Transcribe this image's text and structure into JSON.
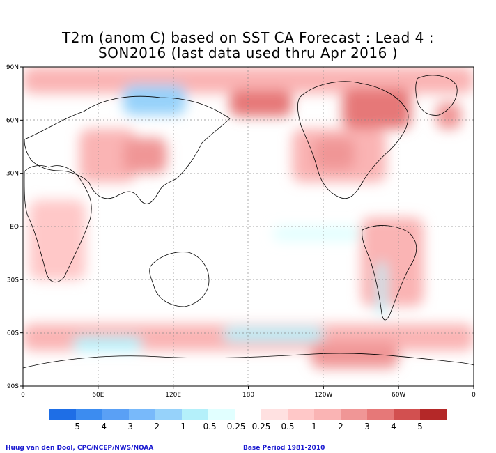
{
  "title_line1": "T2m (anom C) based on SST CA Forecast : Lead 4 :",
  "title_line2": "SON2016 (last data used thru Apr 2016 )",
  "lat_labels": [
    "90N",
    "60N",
    "30N",
    "EQ",
    "30S",
    "60S",
    "90S"
  ],
  "lon_labels": [
    "0",
    "60E",
    "120E",
    "180",
    "120W",
    "60W",
    "0"
  ],
  "colorbar": {
    "colors": [
      "#1e6ee6",
      "#3c8cf0",
      "#5aa0f5",
      "#78b9fa",
      "#96d2fa",
      "#b4f0fa",
      "#e1ffff",
      "#ffffff",
      "#ffe1e1",
      "#ffc8c8",
      "#fab4b4",
      "#f09696",
      "#e67878",
      "#d25050",
      "#b42828"
    ],
    "labels": [
      "-5",
      "-4",
      "-3",
      "-2",
      "-1",
      "-0.5",
      "-0.25",
      "0.25",
      "0.5",
      "1",
      "2",
      "3",
      "4",
      "5"
    ]
  },
  "credit": "Huug van den Dool, CPC/NCEP/NWS/NOAA",
  "base_period": "Base Period 1981-2010",
  "chart_data": {
    "type": "heatmap",
    "variable": "T2m anomaly (C)",
    "title": "T2m (anom C) based on SST CA Forecast : Lead 4 : SON2016 (last data used thru Apr 2016 )",
    "xlim": [
      0,
      360
    ],
    "ylim": [
      -90,
      90
    ],
    "levels": [
      -5,
      -4,
      -3,
      -2,
      -1,
      -0.5,
      -0.25,
      0.25,
      0.5,
      1,
      2,
      3,
      4,
      5
    ],
    "regions": [
      {
        "lon": [
          0,
          360
        ],
        "lat": [
          75,
          90
        ],
        "level": 1
      },
      {
        "lon": [
          80,
          130
        ],
        "lat": [
          63,
          80
        ],
        "level": -1
      },
      {
        "lon": [
          165,
          215
        ],
        "lat": [
          62,
          77
        ],
        "level": 3
      },
      {
        "lon": [
          255,
          310
        ],
        "lat": [
          55,
          78
        ],
        "level": 3
      },
      {
        "lon": [
          330,
          350
        ],
        "lat": [
          55,
          70
        ],
        "level": 2
      },
      {
        "lon": [
          45,
          90
        ],
        "lat": [
          25,
          55
        ],
        "level": 1
      },
      {
        "lon": [
          80,
          115
        ],
        "lat": [
          30,
          50
        ],
        "level": 2
      },
      {
        "lon": [
          215,
          290
        ],
        "lat": [
          25,
          55
        ],
        "level": 1
      },
      {
        "lon": [
          232,
          265
        ],
        "lat": [
          32,
          50
        ],
        "level": 2
      },
      {
        "lon": [
          5,
          50
        ],
        "lat": [
          -30,
          15
        ],
        "level": 0.5
      },
      {
        "lon": [
          270,
          320
        ],
        "lat": [
          -45,
          5
        ],
        "level": 1
      },
      {
        "lon": [
          283,
          290
        ],
        "lat": [
          -50,
          -20
        ],
        "level": -0.5
      },
      {
        "lon": [
          200,
          270
        ],
        "lat": [
          -8,
          0
        ],
        "level": -0.25
      },
      {
        "lon": [
          0,
          360
        ],
        "lat": [
          -70,
          -55
        ],
        "level": 1
      },
      {
        "lon": [
          40,
          95
        ],
        "lat": [
          -70,
          -62
        ],
        "level": -0.5
      },
      {
        "lon": [
          160,
          240
        ],
        "lat": [
          -65,
          -57
        ],
        "level": -0.5
      },
      {
        "lon": [
          230,
          300
        ],
        "lat": [
          -80,
          -65
        ],
        "level": 2
      }
    ]
  }
}
